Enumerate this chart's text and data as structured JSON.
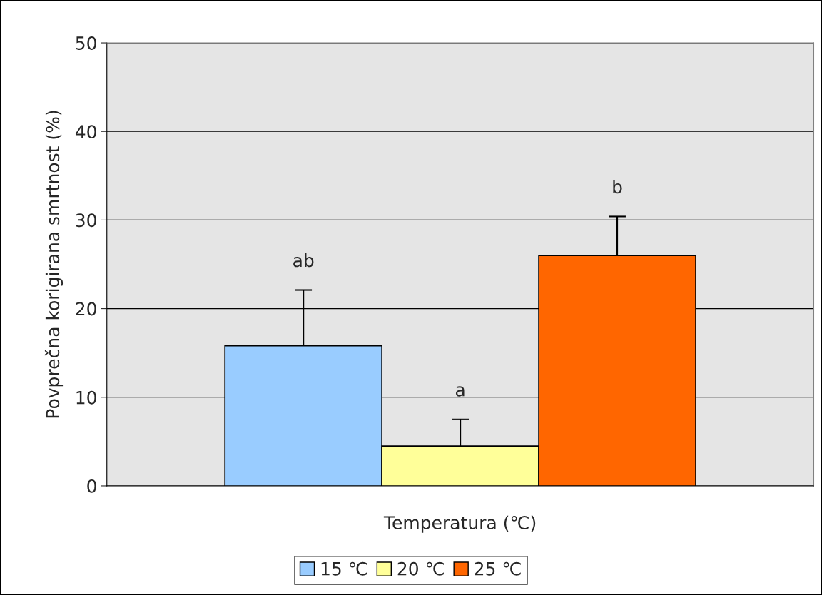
{
  "chart_data": {
    "type": "bar",
    "xlabel": "Temperatura (℃)",
    "ylabel": "Povprečna korigirana smrtnost (%)",
    "categories": [
      null
    ],
    "series": [
      {
        "name": "15 ℃",
        "color": "#99ccff",
        "values": [
          15.8
        ],
        "errors": [
          [
            15.8,
            22.1
          ]
        ]
      },
      {
        "name": "20 ℃",
        "color": "#ffff99",
        "values": [
          4.5
        ],
        "errors": [
          [
            4.5,
            7.5
          ]
        ]
      },
      {
        "name": "25 ℃",
        "color": "#ff6600",
        "values": [
          26.0
        ],
        "errors": [
          [
            26.0,
            30.4
          ]
        ]
      }
    ],
    "annotations": [
      "ab",
      "a",
      "b"
    ],
    "ylim": [
      0,
      50
    ],
    "yticks": [
      0,
      10,
      20,
      30,
      40,
      50
    ],
    "grid": "y",
    "legend": "bottom",
    "tick_labels": "y"
  }
}
